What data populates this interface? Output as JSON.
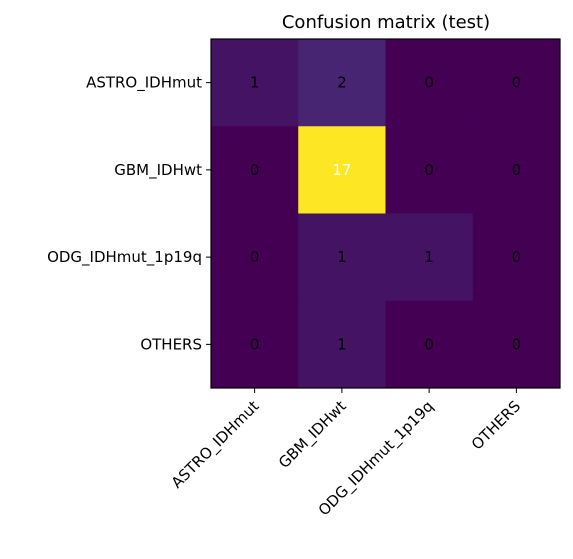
{
  "chart_data": {
    "type": "heatmap",
    "title": "Confusion matrix (test)",
    "xlabel": "",
    "ylabel": "",
    "rows": [
      "ASTRO_IDHmut",
      "GBM_IDHwt",
      "ODG_IDHmut_1p19q",
      "OTHERS"
    ],
    "columns": [
      "ASTRO_IDHmut",
      "GBM_IDHwt",
      "ODG_IDHmut_1p19q",
      "OTHERS"
    ],
    "values": [
      [
        1,
        2,
        0,
        0
      ],
      [
        0,
        17,
        0,
        0
      ],
      [
        0,
        1,
        1,
        0
      ],
      [
        0,
        1,
        0,
        0
      ]
    ],
    "colormap": "viridis",
    "vmin": 0,
    "vmax": 17,
    "grid": false,
    "legend": "none"
  }
}
